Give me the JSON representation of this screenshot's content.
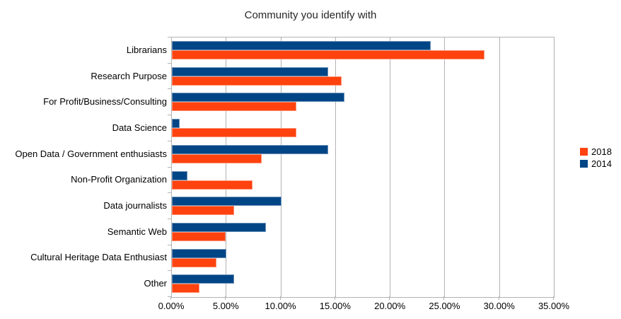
{
  "title": "Community you identify with",
  "chart_data": {
    "type": "bar",
    "orientation": "horizontal",
    "title": "Community you identify with",
    "unit": "%",
    "categories": [
      "Librarians",
      "Research Purpose",
      "For Profit/Business/Consulting",
      "Data Science",
      "Open Data / Government enthusiasts",
      "Non-Profit Organization",
      "Data journalists",
      "Semantic Web",
      "Cultural Heritage Data Enthusiast",
      "Other"
    ],
    "series": [
      {
        "name": "2018",
        "color": "#ff420e",
        "values": [
          28.6,
          15.5,
          11.4,
          11.4,
          8.2,
          7.4,
          5.7,
          4.9,
          4.1,
          2.5
        ]
      },
      {
        "name": "2014",
        "color": "#004586",
        "values": [
          23.7,
          14.3,
          15.8,
          0.7,
          14.3,
          1.4,
          10.0,
          8.6,
          5.0,
          5.7
        ]
      }
    ],
    "bars_top_to_bottom_per_category": [
      "2014",
      "2018"
    ],
    "xlim": [
      0,
      35
    ],
    "xtick_step": 5,
    "xtick_labels": [
      "0.00%",
      "5.00%",
      "10.00%",
      "15.00%",
      "20.00%",
      "25.00%",
      "30.00%",
      "35.00%"
    ],
    "grid": "vertical",
    "legend_position": "right",
    "legend_order": [
      "2018",
      "2014"
    ]
  },
  "colors": {
    "background": "#ffffff",
    "grid": "#b3b3b3",
    "axis": "#b3b3b3",
    "text": "#000000",
    "title_text": "#262626"
  }
}
